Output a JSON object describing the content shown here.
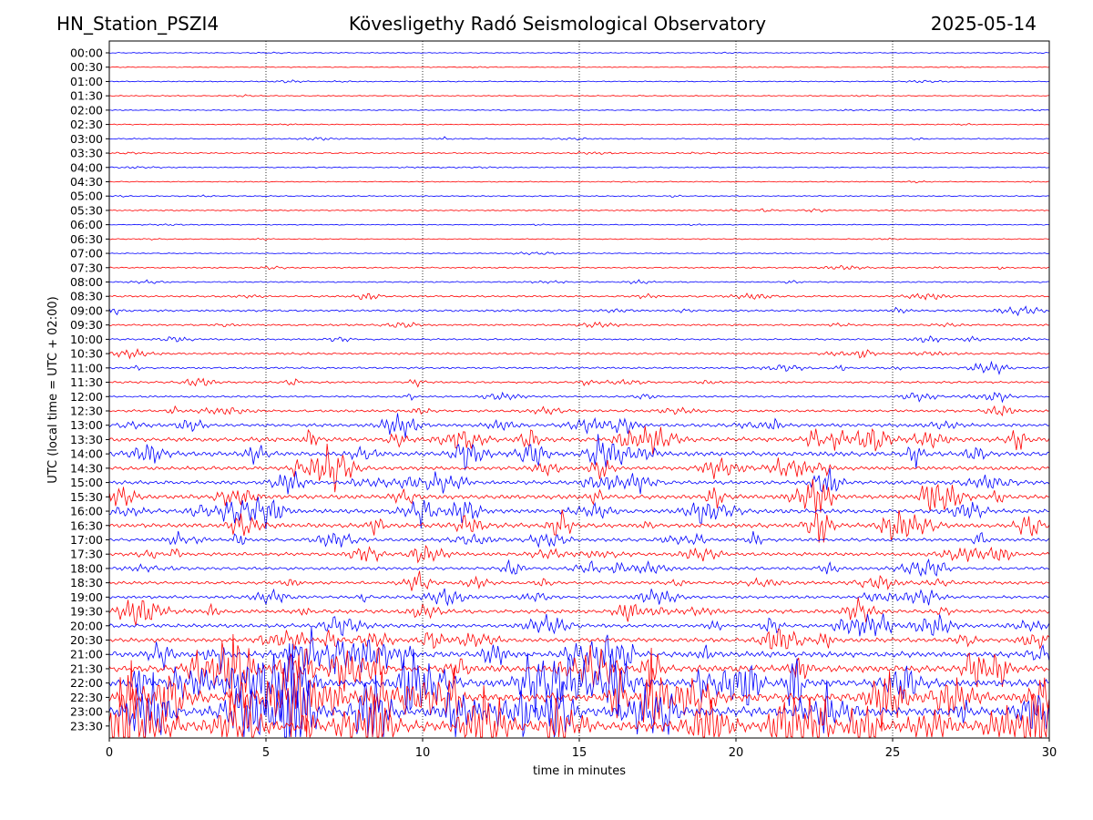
{
  "header": {
    "station": "HN_Station_PSZI4",
    "observatory": "Kövesligethy Radó Seismological Observatory",
    "date": "2025-05-14"
  },
  "chart_data": {
    "type": "line",
    "title": "Kövesligethy Radó Seismological Observatory",
    "xlabel": "time in minutes",
    "ylabel": "UTC (local time = UTC + 02:00)",
    "xlim": [
      0,
      30
    ],
    "x_ticks": [
      "0",
      "5",
      "10",
      "15",
      "20",
      "25",
      "30"
    ],
    "x_tick_values": [
      0,
      5,
      10,
      15,
      20,
      25,
      30
    ],
    "vertical_gridlines_dotted": [
      5,
      10,
      15,
      20,
      25
    ],
    "trace_colors": [
      "#0000ff",
      "#ff0000"
    ],
    "rows": [
      "00:00",
      "00:30",
      "01:00",
      "01:30",
      "02:00",
      "02:30",
      "03:00",
      "03:30",
      "04:00",
      "04:30",
      "05:00",
      "05:30",
      "06:00",
      "06:30",
      "07:00",
      "07:30",
      "08:00",
      "08:30",
      "09:00",
      "09:30",
      "10:00",
      "10:30",
      "11:00",
      "11:30",
      "12:00",
      "12:30",
      "13:00",
      "13:30",
      "14:00",
      "14:30",
      "15:00",
      "15:30",
      "16:00",
      "16:30",
      "17:00",
      "17:30",
      "18:00",
      "18:30",
      "19:00",
      "19:30",
      "20:00",
      "20:30",
      "21:00",
      "21:30",
      "22:00",
      "22:30",
      "23:00",
      "23:30"
    ],
    "relative_activity": [
      0.02,
      0.02,
      0.06,
      0.04,
      0.03,
      0.04,
      0.08,
      0.1,
      0.06,
      0.05,
      0.07,
      0.1,
      0.04,
      0.04,
      0.05,
      0.12,
      0.12,
      0.2,
      0.25,
      0.2,
      0.18,
      0.25,
      0.22,
      0.25,
      0.22,
      0.35,
      0.5,
      0.7,
      0.75,
      0.6,
      0.6,
      0.7,
      0.7,
      0.75,
      0.5,
      0.55,
      0.45,
      0.45,
      0.45,
      0.6,
      0.6,
      0.7,
      1.0,
      1.2,
      1.4,
      1.5,
      1.6,
      1.8
    ]
  }
}
